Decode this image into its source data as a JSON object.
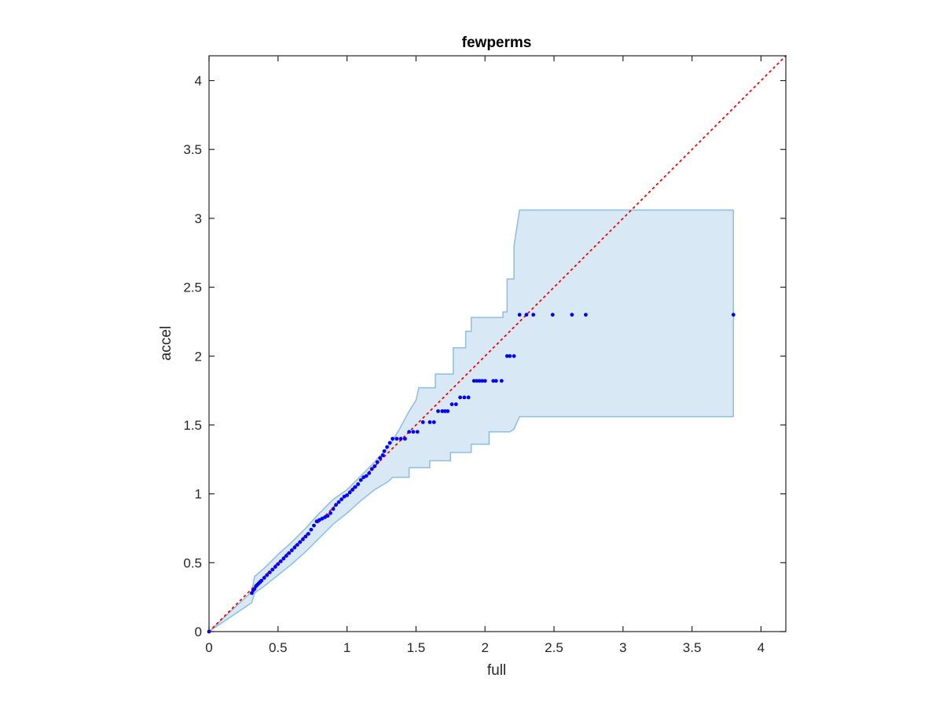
{
  "chart_data": {
    "type": "scatter",
    "title": "fewperms",
    "xlabel": "full",
    "ylabel": "accel",
    "xlim": [
      0,
      4.18
    ],
    "ylim": [
      0,
      4.18
    ],
    "xticks": [
      0,
      0.5,
      1,
      1.5,
      2,
      2.5,
      3,
      3.5,
      4
    ],
    "yticks": [
      0,
      0.5,
      1,
      1.5,
      2,
      2.5,
      3,
      3.5,
      4
    ],
    "xtick_labels": [
      "0",
      "0.5",
      "1",
      "1.5",
      "2",
      "2.5",
      "3",
      "3.5",
      "4"
    ],
    "ytick_labels": [
      "0",
      "0.5",
      "1",
      "1.5",
      "2",
      "2.5",
      "3",
      "3.5",
      "4"
    ],
    "grid": false,
    "reference_line": {
      "style": "dotted",
      "color": "#ff0000",
      "from": [
        0,
        0
      ],
      "to": [
        4.18,
        4.18
      ]
    },
    "band": {
      "fill": "#d8e8f4",
      "stroke": "#8dbfdd",
      "upper": [
        [
          0,
          0
        ],
        [
          0.31,
          0.29
        ],
        [
          0.33,
          0.4
        ],
        [
          0.4,
          0.46
        ],
        [
          0.5,
          0.56
        ],
        [
          0.6,
          0.65
        ],
        [
          0.7,
          0.75
        ],
        [
          0.8,
          0.86
        ],
        [
          0.9,
          0.96
        ],
        [
          1.0,
          1.03
        ],
        [
          1.1,
          1.13
        ],
        [
          1.18,
          1.21
        ],
        [
          1.26,
          1.3
        ],
        [
          1.32,
          1.37
        ],
        [
          1.38,
          1.47
        ],
        [
          1.45,
          1.6
        ],
        [
          1.5,
          1.68
        ],
        [
          1.52,
          1.77
        ],
        [
          1.64,
          1.77
        ],
        [
          1.64,
          1.87
        ],
        [
          1.77,
          1.87
        ],
        [
          1.77,
          2.06
        ],
        [
          1.86,
          2.06
        ],
        [
          1.86,
          2.18
        ],
        [
          1.9,
          2.18
        ],
        [
          1.9,
          2.28
        ],
        [
          2.13,
          2.28
        ],
        [
          2.13,
          2.32
        ],
        [
          2.16,
          2.32
        ],
        [
          2.16,
          2.56
        ],
        [
          2.21,
          2.56
        ],
        [
          2.21,
          2.8
        ],
        [
          2.25,
          3.06
        ],
        [
          3.8,
          3.06
        ]
      ],
      "lower": [
        [
          0,
          0
        ],
        [
          0.31,
          0.21
        ],
        [
          0.33,
          0.28
        ],
        [
          0.4,
          0.33
        ],
        [
          0.5,
          0.41
        ],
        [
          0.6,
          0.49
        ],
        [
          0.7,
          0.58
        ],
        [
          0.8,
          0.68
        ],
        [
          0.9,
          0.78
        ],
        [
          1.0,
          0.86
        ],
        [
          1.1,
          0.95
        ],
        [
          1.2,
          1.03
        ],
        [
          1.3,
          1.09
        ],
        [
          1.33,
          1.12
        ],
        [
          1.45,
          1.12
        ],
        [
          1.45,
          1.19
        ],
        [
          1.6,
          1.19
        ],
        [
          1.6,
          1.24
        ],
        [
          1.75,
          1.24
        ],
        [
          1.75,
          1.3
        ],
        [
          1.9,
          1.3
        ],
        [
          1.9,
          1.36
        ],
        [
          2.03,
          1.36
        ],
        [
          2.03,
          1.45
        ],
        [
          2.18,
          1.45
        ],
        [
          2.21,
          1.47
        ],
        [
          2.25,
          1.56
        ],
        [
          3.8,
          1.56
        ]
      ]
    },
    "points_color": "#0000ff",
    "points": [
      [
        0,
        0
      ],
      [
        0.31,
        0.28
      ],
      [
        0.32,
        0.3
      ],
      [
        0.33,
        0.31
      ],
      [
        0.34,
        0.33
      ],
      [
        0.35,
        0.34
      ],
      [
        0.36,
        0.35
      ],
      [
        0.37,
        0.36
      ],
      [
        0.38,
        0.37
      ],
      [
        0.4,
        0.39
      ],
      [
        0.42,
        0.41
      ],
      [
        0.44,
        0.43
      ],
      [
        0.46,
        0.45
      ],
      [
        0.48,
        0.47
      ],
      [
        0.5,
        0.49
      ],
      [
        0.52,
        0.51
      ],
      [
        0.54,
        0.53
      ],
      [
        0.56,
        0.55
      ],
      [
        0.58,
        0.57
      ],
      [
        0.6,
        0.59
      ],
      [
        0.62,
        0.61
      ],
      [
        0.64,
        0.63
      ],
      [
        0.66,
        0.65
      ],
      [
        0.68,
        0.67
      ],
      [
        0.7,
        0.69
      ],
      [
        0.72,
        0.71
      ],
      [
        0.74,
        0.74
      ],
      [
        0.76,
        0.77
      ],
      [
        0.78,
        0.8
      ],
      [
        0.8,
        0.81
      ],
      [
        0.82,
        0.82
      ],
      [
        0.84,
        0.83
      ],
      [
        0.86,
        0.84
      ],
      [
        0.88,
        0.86
      ],
      [
        0.9,
        0.89
      ],
      [
        0.92,
        0.92
      ],
      [
        0.94,
        0.94
      ],
      [
        0.96,
        0.96
      ],
      [
        0.98,
        0.98
      ],
      [
        1.0,
        0.99
      ],
      [
        1.02,
        1.01
      ],
      [
        1.04,
        1.03
      ],
      [
        1.06,
        1.05
      ],
      [
        1.08,
        1.07
      ],
      [
        1.1,
        1.1
      ],
      [
        1.12,
        1.12
      ],
      [
        1.14,
        1.13
      ],
      [
        1.16,
        1.15
      ],
      [
        1.18,
        1.18
      ],
      [
        1.2,
        1.2
      ],
      [
        1.22,
        1.23
      ],
      [
        1.24,
        1.26
      ],
      [
        1.26,
        1.28
      ],
      [
        1.27,
        1.31
      ],
      [
        1.29,
        1.34
      ],
      [
        1.31,
        1.37
      ],
      [
        1.33,
        1.4
      ],
      [
        1.36,
        1.4
      ],
      [
        1.39,
        1.4
      ],
      [
        1.42,
        1.4
      ],
      [
        1.45,
        1.45
      ],
      [
        1.48,
        1.45
      ],
      [
        1.51,
        1.45
      ],
      [
        1.55,
        1.52
      ],
      [
        1.6,
        1.52
      ],
      [
        1.63,
        1.52
      ],
      [
        1.66,
        1.6
      ],
      [
        1.69,
        1.6
      ],
      [
        1.71,
        1.6
      ],
      [
        1.73,
        1.6
      ],
      [
        1.76,
        1.65
      ],
      [
        1.79,
        1.65
      ],
      [
        1.82,
        1.7
      ],
      [
        1.85,
        1.7
      ],
      [
        1.88,
        1.7
      ],
      [
        1.92,
        1.82
      ],
      [
        1.94,
        1.82
      ],
      [
        1.96,
        1.82
      ],
      [
        1.98,
        1.82
      ],
      [
        2.0,
        1.82
      ],
      [
        2.06,
        1.82
      ],
      [
        2.08,
        1.82
      ],
      [
        2.12,
        1.82
      ],
      [
        2.16,
        2.0
      ],
      [
        2.18,
        2.0
      ],
      [
        2.21,
        2.0
      ],
      [
        2.25,
        2.3
      ],
      [
        2.3,
        2.3
      ],
      [
        2.35,
        2.3
      ],
      [
        2.49,
        2.3
      ],
      [
        2.63,
        2.3
      ],
      [
        2.73,
        2.3
      ],
      [
        3.8,
        2.3
      ]
    ]
  }
}
